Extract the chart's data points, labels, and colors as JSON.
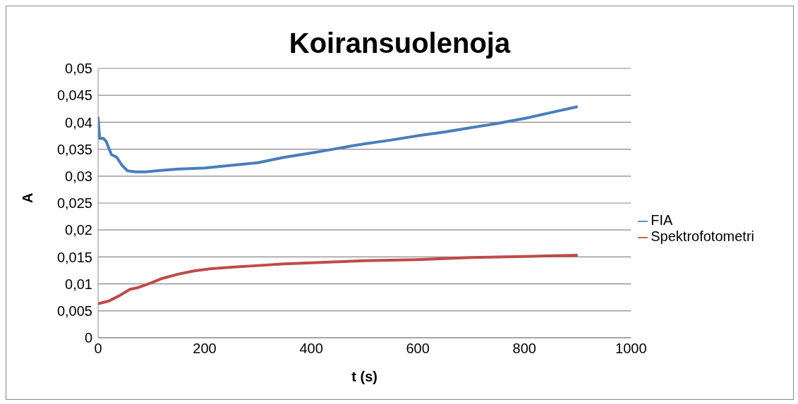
{
  "chart_data": {
    "type": "line",
    "title": "Koiransuolenoja",
    "xlabel": "t (s)",
    "ylabel": "A",
    "xlim": [
      0,
      1000
    ],
    "xticks": [
      0,
      200,
      400,
      600,
      800,
      1000
    ],
    "ylim": [
      0,
      0.05
    ],
    "yticks": [
      {
        "value": 0,
        "label": "0"
      },
      {
        "value": 0.005,
        "label": "0,005"
      },
      {
        "value": 0.01,
        "label": "0,01"
      },
      {
        "value": 0.015,
        "label": "0,015"
      },
      {
        "value": 0.02,
        "label": "0,02"
      },
      {
        "value": 0.025,
        "label": "0,025"
      },
      {
        "value": 0.03,
        "label": "0,03"
      },
      {
        "value": 0.035,
        "label": "0,035"
      },
      {
        "value": 0.04,
        "label": "0,04"
      },
      {
        "value": 0.045,
        "label": "0,045"
      },
      {
        "value": 0.05,
        "label": "0,05"
      }
    ],
    "grid": "y",
    "legend": "right",
    "marker": "none",
    "line_style": "solid",
    "series": [
      {
        "name": "FIA",
        "color": "#4a7ebb",
        "x": [
          0,
          3,
          10,
          15,
          25,
          35,
          45,
          55,
          70,
          90,
          110,
          150,
          200,
          250,
          300,
          350,
          400,
          430,
          470,
          500,
          550,
          600,
          650,
          700,
          750,
          800,
          850,
          900
        ],
        "values": [
          0.041,
          0.037,
          0.037,
          0.0365,
          0.034,
          0.0335,
          0.032,
          0.031,
          0.0308,
          0.0308,
          0.031,
          0.0313,
          0.0315,
          0.032,
          0.0325,
          0.0335,
          0.0343,
          0.0348,
          0.0355,
          0.036,
          0.0367,
          0.0375,
          0.0382,
          0.039,
          0.0398,
          0.0407,
          0.0418,
          0.0429
        ]
      },
      {
        "name": "Spektrofotometri",
        "color": "#be4b48",
        "x": [
          0,
          20,
          40,
          60,
          75,
          100,
          120,
          150,
          180,
          210,
          250,
          300,
          350,
          400,
          450,
          500,
          600,
          700,
          800,
          900
        ],
        "values": [
          0.0063,
          0.0068,
          0.0078,
          0.009,
          0.0093,
          0.0102,
          0.011,
          0.0118,
          0.0124,
          0.0128,
          0.0131,
          0.0134,
          0.0137,
          0.0139,
          0.0141,
          0.0143,
          0.0145,
          0.0149,
          0.0151,
          0.0153
        ]
      }
    ]
  }
}
